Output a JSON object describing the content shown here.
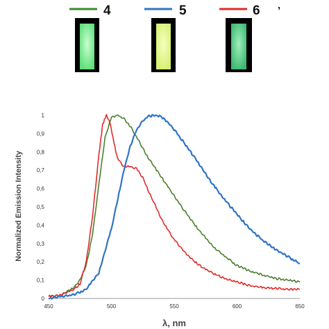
{
  "legend": [
    {
      "label": "4",
      "color": "#3a8a2a"
    },
    {
      "label": "5",
      "color": "#2f73c5"
    },
    {
      "label": "6",
      "color": "#e02a2a"
    }
  ],
  "legend_mark": "’",
  "vials": [
    {
      "name": "vial-4",
      "glow": "#5fe07a",
      "core": "#c8ffcf"
    },
    {
      "name": "vial-5",
      "glow": "#d6f070",
      "core": "#f6ffc0"
    },
    {
      "name": "vial-6",
      "glow": "#3fb872",
      "core": "#9ef0be"
    }
  ],
  "chart_data": {
    "type": "line",
    "title": "",
    "xlabel": "λ, nm",
    "ylabel": "Normalized Emission Intensity",
    "xlim": [
      450,
      650
    ],
    "ylim": [
      0,
      1
    ],
    "x_ticks": [
      "450",
      "500",
      "550",
      "600",
      "650"
    ],
    "y_ticks": [
      "0",
      "0,1",
      "0,2",
      "0,3",
      "0,4",
      "0,5",
      "0,6",
      "0,7",
      "0,8",
      "0,9",
      "1"
    ],
    "grid": false,
    "series": [
      {
        "name": "4",
        "color": "#4a7f2c",
        "x": [
          450,
          460,
          470,
          475,
          480,
          485,
          490,
          495,
          500,
          505,
          510,
          515,
          520,
          525,
          530,
          540,
          550,
          560,
          570,
          580,
          590,
          600,
          610,
          620,
          630,
          640,
          650
        ],
        "y": [
          0.01,
          0.02,
          0.06,
          0.1,
          0.18,
          0.35,
          0.62,
          0.88,
          0.99,
          1.0,
          0.98,
          0.94,
          0.88,
          0.82,
          0.76,
          0.66,
          0.56,
          0.46,
          0.37,
          0.29,
          0.23,
          0.18,
          0.15,
          0.13,
          0.11,
          0.1,
          0.09
        ]
      },
      {
        "name": "5",
        "color": "#2f73c5",
        "x": [
          450,
          460,
          470,
          480,
          490,
          500,
          505,
          510,
          515,
          520,
          525,
          530,
          535,
          540,
          545,
          550,
          560,
          570,
          580,
          590,
          600,
          610,
          620,
          630,
          640,
          650
        ],
        "y": [
          0.0,
          0.01,
          0.02,
          0.05,
          0.14,
          0.38,
          0.54,
          0.7,
          0.83,
          0.92,
          0.97,
          0.995,
          1.0,
          0.99,
          0.96,
          0.92,
          0.83,
          0.73,
          0.63,
          0.54,
          0.46,
          0.38,
          0.32,
          0.27,
          0.23,
          0.19
        ]
      },
      {
        "name": "6",
        "color": "#e02a2a",
        "x": [
          450,
          460,
          470,
          475,
          480,
          485,
          490,
          493,
          496,
          499,
          502,
          505,
          510,
          515,
          520,
          525,
          530,
          540,
          550,
          560,
          570,
          580,
          590,
          600,
          610,
          620,
          630,
          640,
          650
        ],
        "y": [
          0.01,
          0.02,
          0.05,
          0.08,
          0.2,
          0.45,
          0.78,
          0.95,
          1.0,
          0.96,
          0.85,
          0.76,
          0.72,
          0.72,
          0.71,
          0.66,
          0.58,
          0.43,
          0.32,
          0.24,
          0.18,
          0.14,
          0.11,
          0.09,
          0.07,
          0.06,
          0.055,
          0.05,
          0.05
        ]
      }
    ]
  }
}
